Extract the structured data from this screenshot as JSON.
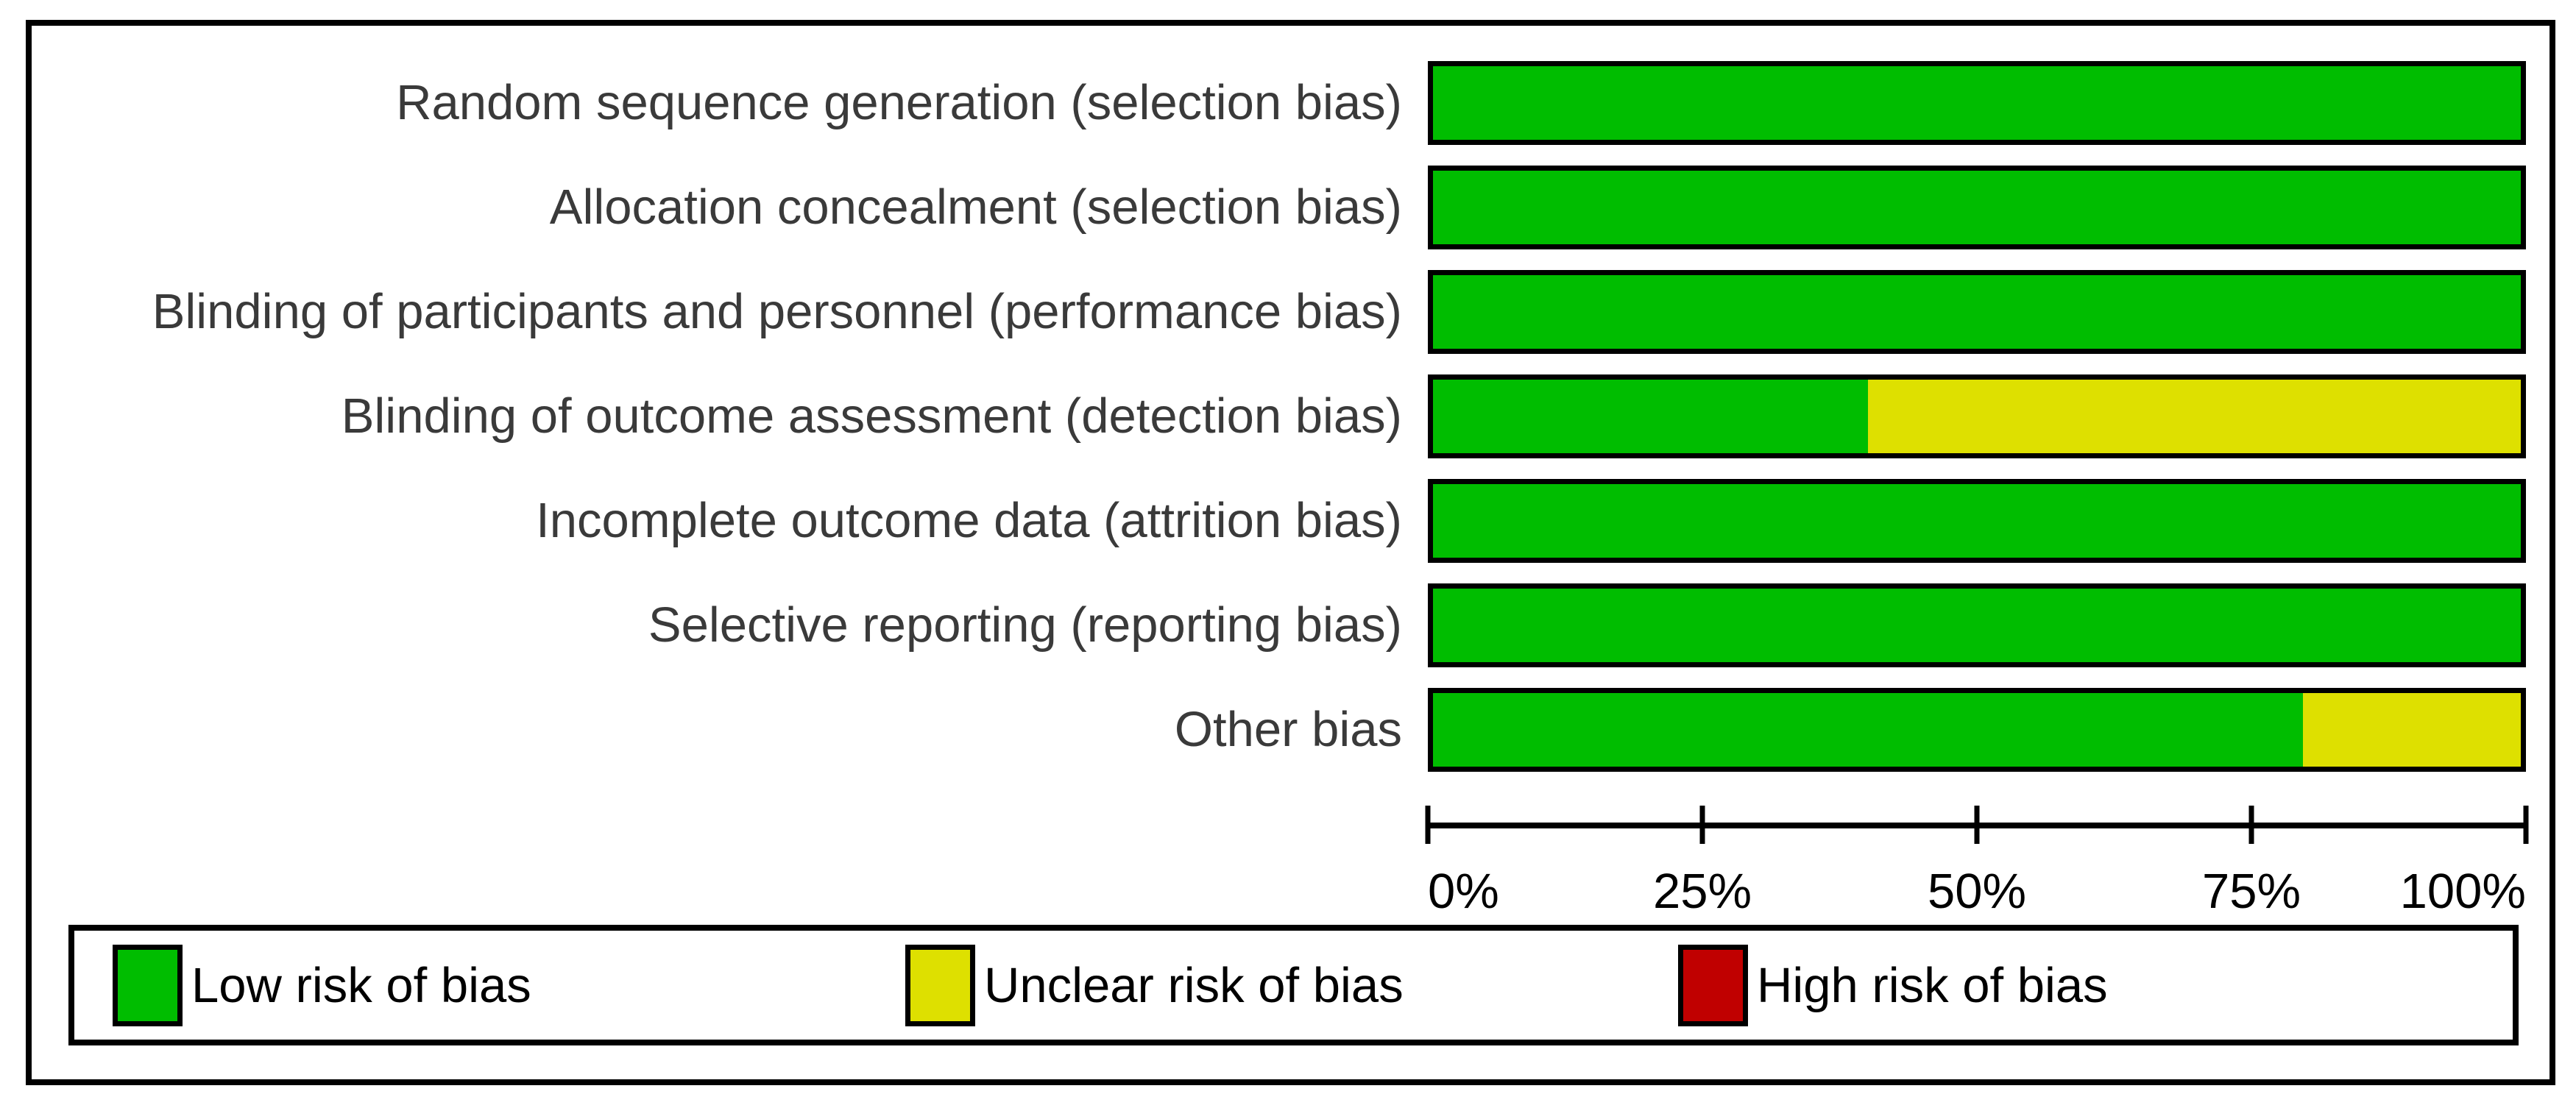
{
  "chart_data": {
    "type": "bar",
    "orientation": "horizontal-stacked",
    "title": "",
    "xlabel": "",
    "ylabel": "",
    "xlim": [
      0,
      100
    ],
    "x_ticks": [
      "0%",
      "25%",
      "50%",
      "75%",
      "100%"
    ],
    "grid": false,
    "legend_position": "bottom",
    "categories": [
      "Random sequence generation (selection bias)",
      "Allocation concealment (selection bias)",
      "Blinding of participants and personnel (performance bias)",
      "Blinding of outcome assessment (detection bias)",
      "Incomplete outcome data (attrition bias)",
      "Selective reporting (reporting bias)",
      "Other bias"
    ],
    "series": [
      {
        "name": "Low risk of bias",
        "color": "#00bd00",
        "values": [
          100,
          100,
          100,
          40,
          100,
          100,
          80
        ]
      },
      {
        "name": "Unclear risk of bias",
        "color": "#dee000",
        "values": [
          0,
          0,
          0,
          60,
          0,
          0,
          20
        ]
      },
      {
        "name": "High risk of bias",
        "color": "#c00000",
        "values": [
          0,
          0,
          0,
          0,
          0,
          0,
          0
        ]
      }
    ]
  },
  "legend": {
    "items": [
      {
        "label": "Low risk of bias",
        "color": "#00bd00"
      },
      {
        "label": "Unclear risk of bias",
        "color": "#dee000"
      },
      {
        "label": "High risk of bias",
        "color": "#c00000"
      }
    ]
  },
  "colors": {
    "frame_border": "#000000",
    "bar_border": "#000000",
    "category_label_text": "#3a3a3a",
    "axis_text": "#000000",
    "background": "#ffffff"
  }
}
